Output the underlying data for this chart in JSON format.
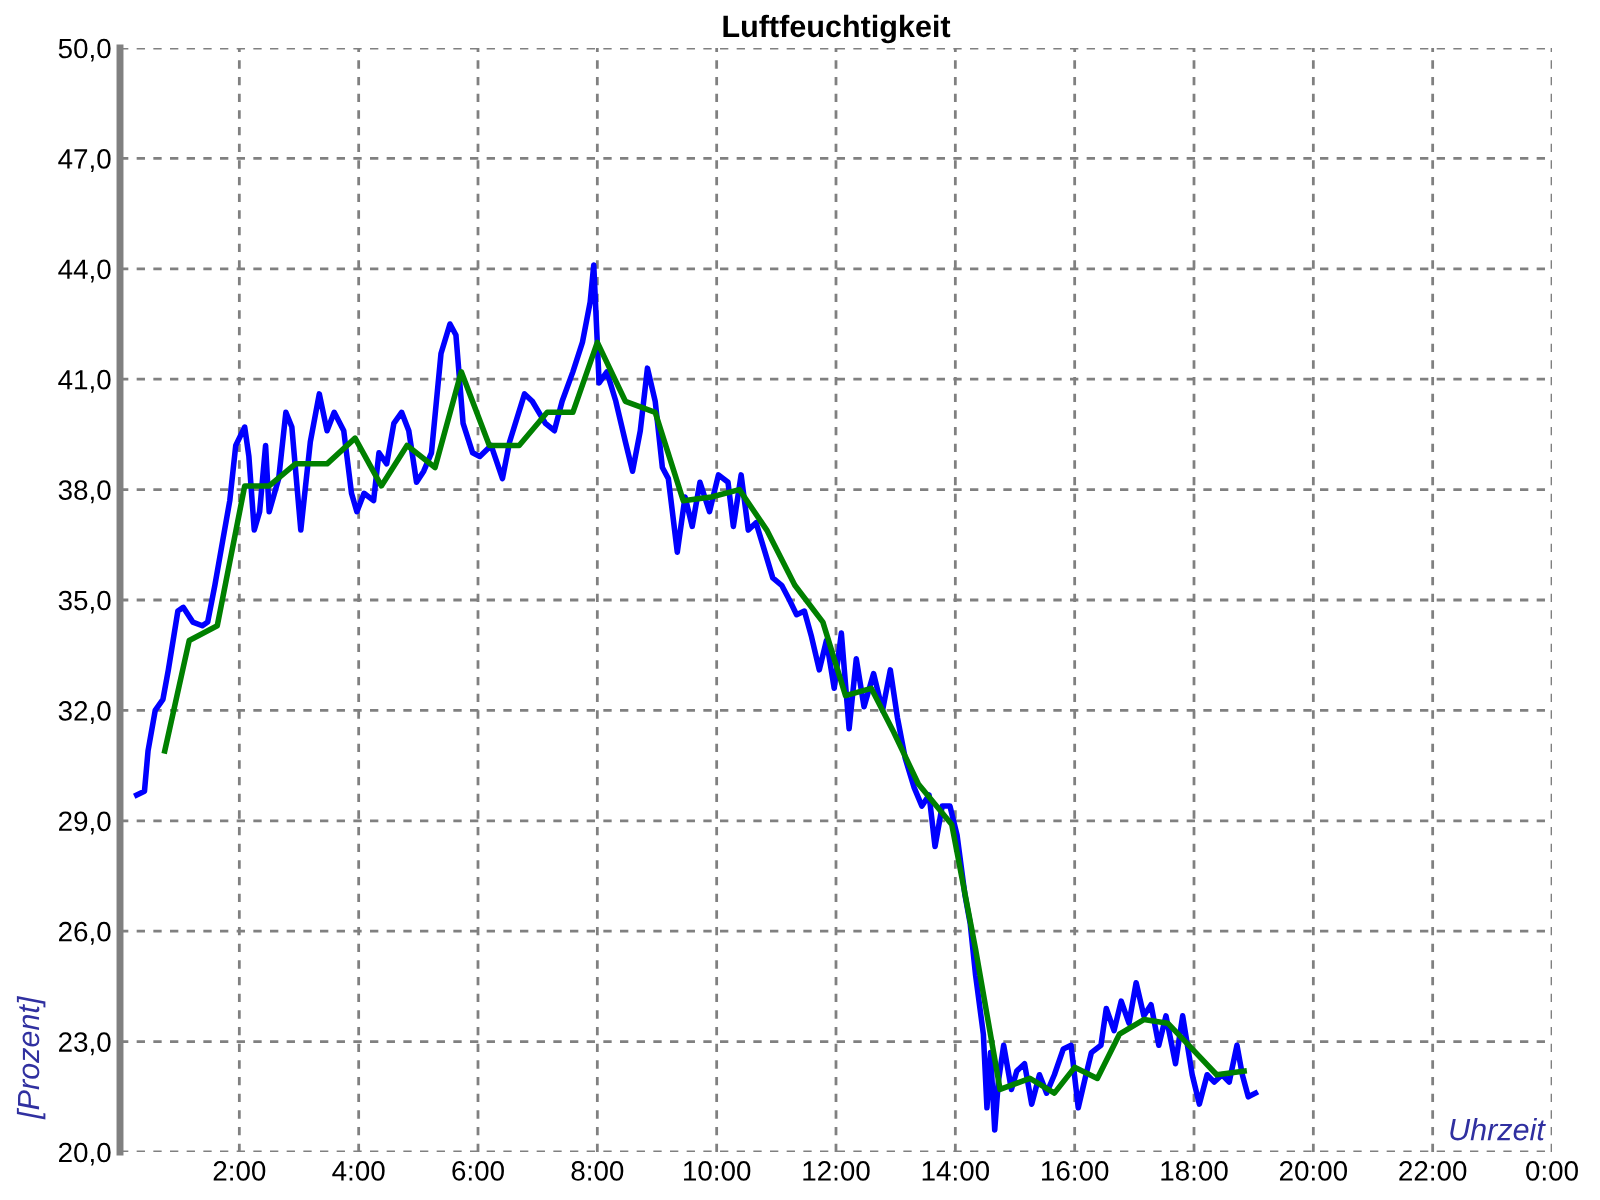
{
  "chart_data": {
    "type": "line",
    "title": "Luftfeuchtigkeit",
    "xlabel": "Uhrzeit",
    "ylabel": "[Prozent]",
    "xlim": [
      0,
      24
    ],
    "ylim": [
      20,
      50
    ],
    "xticks": [
      {
        "value": 0,
        "label": null
      },
      {
        "value": 2,
        "label": "2:00"
      },
      {
        "value": 4,
        "label": "4:00"
      },
      {
        "value": 6,
        "label": "6:00"
      },
      {
        "value": 8,
        "label": "8:00"
      },
      {
        "value": 10,
        "label": "10:00"
      },
      {
        "value": 12,
        "label": "12:00"
      },
      {
        "value": 14,
        "label": "14:00"
      },
      {
        "value": 16,
        "label": "16:00"
      },
      {
        "value": 18,
        "label": "18:00"
      },
      {
        "value": 20,
        "label": "20:00"
      },
      {
        "value": 22,
        "label": "22:00"
      },
      {
        "value": 24,
        "label": "0:00"
      }
    ],
    "yticks": [
      {
        "value": 20,
        "label": "20,0"
      },
      {
        "value": 23,
        "label": "23,0"
      },
      {
        "value": 26,
        "label": "26,0"
      },
      {
        "value": 29,
        "label": "29,0"
      },
      {
        "value": 32,
        "label": "32,0"
      },
      {
        "value": 35,
        "label": "35,0"
      },
      {
        "value": 38,
        "label": "38,0"
      },
      {
        "value": 41,
        "label": "41,0"
      },
      {
        "value": 44,
        "label": "44,0"
      },
      {
        "value": 47,
        "label": "47,0"
      },
      {
        "value": 50,
        "label": "50,0"
      }
    ],
    "grid": true,
    "legend": false,
    "marker": "none",
    "line_style": "solid",
    "series": [
      {
        "color": "#0000ff",
        "x": [
          0.28,
          0.41,
          0.47,
          0.59,
          0.72,
          0.81,
          0.97,
          1.06,
          1.22,
          1.38,
          1.47,
          1.59,
          1.72,
          1.84,
          1.94,
          2.09,
          2.16,
          2.25,
          2.34,
          2.44,
          2.5,
          2.66,
          2.78,
          2.88,
          3.03,
          3.19,
          3.34,
          3.47,
          3.59,
          3.75,
          3.88,
          3.97,
          4.09,
          4.25,
          4.34,
          4.47,
          4.59,
          4.72,
          4.84,
          4.97,
          5.09,
          5.22,
          5.38,
          5.53,
          5.63,
          5.75,
          5.91,
          6.03,
          6.22,
          6.41,
          6.53,
          6.78,
          6.91,
          7.13,
          7.28,
          7.41,
          7.59,
          7.75,
          7.88,
          7.94,
          8.03,
          8.16,
          8.31,
          8.47,
          8.59,
          8.72,
          8.84,
          8.97,
          9.09,
          9.19,
          9.34,
          9.47,
          9.59,
          9.72,
          9.88,
          10.03,
          10.19,
          10.28,
          10.41,
          10.53,
          10.66,
          10.81,
          10.94,
          11.09,
          11.22,
          11.34,
          11.47,
          11.59,
          11.72,
          11.84,
          11.97,
          12.09,
          12.22,
          12.34,
          12.47,
          12.63,
          12.78,
          12.91,
          13.03,
          13.16,
          13.31,
          13.44,
          13.56,
          13.66,
          13.78,
          13.91,
          14.03,
          14.16,
          14.25,
          14.34,
          14.47,
          14.53,
          14.59,
          14.66,
          14.72,
          14.81,
          14.94,
          15.03,
          15.16,
          15.28,
          15.41,
          15.53,
          15.66,
          15.81,
          15.94,
          16.06,
          16.19,
          16.28,
          16.44,
          16.53,
          16.66,
          16.78,
          16.91,
          17.03,
          17.16,
          17.28,
          17.41,
          17.53,
          17.69,
          17.81,
          17.97,
          18.09,
          18.22,
          18.34,
          18.47,
          18.59,
          18.72,
          18.81,
          18.91,
          19.03
        ],
        "values": [
          29.7,
          29.8,
          30.9,
          32.0,
          32.3,
          33.1,
          34.7,
          34.8,
          34.4,
          34.3,
          34.4,
          35.4,
          36.6,
          37.7,
          39.2,
          39.7,
          38.9,
          36.9,
          37.4,
          39.2,
          37.4,
          38.3,
          40.1,
          39.7,
          36.9,
          39.3,
          40.6,
          39.6,
          40.1,
          39.6,
          37.9,
          37.4,
          37.9,
          37.7,
          39.0,
          38.7,
          39.8,
          40.1,
          39.6,
          38.2,
          38.5,
          39.0,
          41.7,
          42.5,
          42.2,
          39.8,
          39.0,
          38.9,
          39.2,
          38.3,
          39.3,
          40.6,
          40.4,
          39.8,
          39.6,
          40.4,
          41.2,
          42.0,
          43.1,
          44.1,
          40.9,
          41.2,
          40.4,
          39.3,
          38.5,
          39.6,
          41.3,
          40.4,
          38.6,
          38.3,
          36.3,
          37.8,
          37.0,
          38.2,
          37.4,
          38.4,
          38.2,
          37.0,
          38.4,
          36.9,
          37.1,
          36.3,
          35.6,
          35.4,
          35.0,
          34.6,
          34.7,
          34.0,
          33.1,
          33.9,
          32.6,
          34.1,
          31.5,
          33.4,
          32.1,
          33.0,
          32.0,
          33.1,
          31.8,
          30.7,
          29.9,
          29.4,
          29.7,
          28.3,
          29.4,
          29.4,
          28.6,
          27.0,
          26.2,
          24.8,
          23.2,
          21.2,
          22.7,
          20.6,
          21.9,
          22.9,
          21.7,
          22.2,
          22.4,
          21.3,
          22.1,
          21.6,
          22.1,
          22.8,
          22.9,
          21.2,
          22.1,
          22.7,
          22.9,
          23.9,
          23.3,
          24.1,
          23.5,
          24.6,
          23.7,
          24.0,
          22.9,
          23.7,
          22.4,
          23.7,
          22.1,
          21.3,
          22.1,
          21.9,
          22.1,
          21.9,
          22.9,
          22.1,
          21.5,
          21.6
        ]
      },
      {
        "color": "#008000",
        "x": [
          0.75,
          1.16,
          1.63,
          2.09,
          2.5,
          2.94,
          3.47,
          3.94,
          4.38,
          4.81,
          5.28,
          5.72,
          6.19,
          6.69,
          7.16,
          7.59,
          8.0,
          8.47,
          8.97,
          9.44,
          9.91,
          10.38,
          10.84,
          11.31,
          11.78,
          12.16,
          12.59,
          12.97,
          13.38,
          13.94,
          14.34,
          14.75,
          15.25,
          15.66,
          16.0,
          16.38,
          16.75,
          17.16,
          17.56,
          17.97,
          18.38,
          18.84
        ],
        "values": [
          30.9,
          33.9,
          34.3,
          38.1,
          38.1,
          38.7,
          38.7,
          39.4,
          38.1,
          39.2,
          38.6,
          41.2,
          39.2,
          39.2,
          40.1,
          40.1,
          42.0,
          40.4,
          40.1,
          37.7,
          37.8,
          38.0,
          36.9,
          35.4,
          34.4,
          32.4,
          32.6,
          31.4,
          30.0,
          28.9,
          25.5,
          21.7,
          22.0,
          21.6,
          22.3,
          22.0,
          23.2,
          23.6,
          23.5,
          22.8,
          22.1,
          22.2
        ]
      }
    ]
  }
}
